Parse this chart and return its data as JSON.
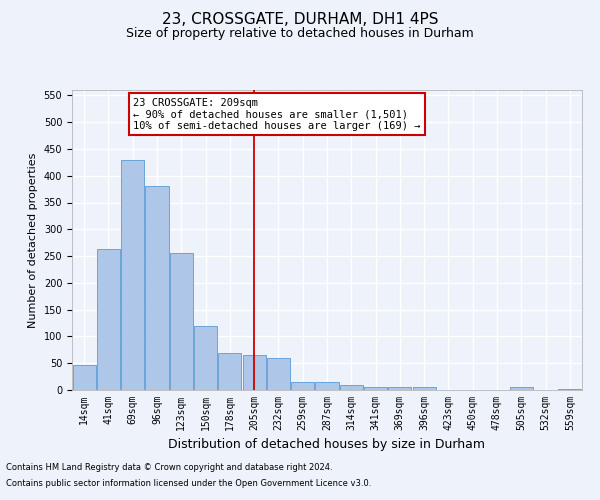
{
  "title": "23, CROSSGATE, DURHAM, DH1 4PS",
  "subtitle": "Size of property relative to detached houses in Durham",
  "xlabel": "Distribution of detached houses by size in Durham",
  "ylabel": "Number of detached properties",
  "footer_line1": "Contains HM Land Registry data © Crown copyright and database right 2024.",
  "footer_line2": "Contains public sector information licensed under the Open Government Licence v3.0.",
  "bar_categories": [
    "14sqm",
    "41sqm",
    "69sqm",
    "96sqm",
    "123sqm",
    "150sqm",
    "178sqm",
    "205sqm",
    "232sqm",
    "259sqm",
    "287sqm",
    "314sqm",
    "341sqm",
    "369sqm",
    "396sqm",
    "423sqm",
    "450sqm",
    "478sqm",
    "505sqm",
    "532sqm",
    "559sqm"
  ],
  "bar_values": [
    47,
    263,
    430,
    380,
    255,
    120,
    70,
    65,
    60,
    15,
    15,
    10,
    5,
    5,
    5,
    0,
    0,
    0,
    5,
    0,
    2
  ],
  "bar_color": "#aec6e8",
  "bar_edge_color": "#5b9bd5",
  "vline_color": "#cc0000",
  "annotation_text": "23 CROSSGATE: 209sqm\n← 90% of detached houses are smaller (1,501)\n10% of semi-detached houses are larger (169) →",
  "annotation_box_color": "#ffffff",
  "annotation_box_edge_color": "#cc0000",
  "ylim_max": 560,
  "yticks": [
    0,
    50,
    100,
    150,
    200,
    250,
    300,
    350,
    400,
    450,
    500,
    550
  ],
  "bg_color": "#eef3fb",
  "grid_color": "#ffffff",
  "title_fontsize": 11,
  "subtitle_fontsize": 9,
  "xlabel_fontsize": 9,
  "ylabel_fontsize": 8,
  "tick_fontsize": 7,
  "footer_fontsize": 6,
  "annot_fontsize": 7.5
}
